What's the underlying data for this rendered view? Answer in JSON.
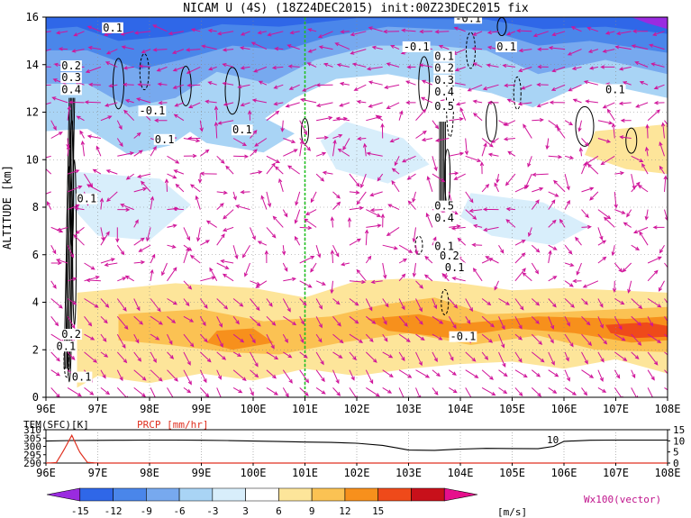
{
  "title": "NICAM U (4S) (18Z24DEC2015) init:00Z23DEC2015 fix",
  "chart_data": [
    {
      "type": "heatmap",
      "name": "zonal-wind-section",
      "ylabel": "ALTITUDE [km]",
      "x_ticks": [
        "96E",
        "97E",
        "98E",
        "99E",
        "100E",
        "101E",
        "102E",
        "103E",
        "104E",
        "105E",
        "106E",
        "107E",
        "108E"
      ],
      "x_range": [
        96,
        108
      ],
      "y_ticks": [
        "0",
        "2",
        "4",
        "6",
        "8",
        "10",
        "12",
        "14",
        "16"
      ],
      "y_range": [
        0,
        16
      ],
      "grid": true,
      "reference_line_lon": 101,
      "contour_labels": [
        {
          "text": "0.1",
          "lon": 97.1,
          "alt": 15.4
        },
        {
          "text": "0.2",
          "lon": 96.3,
          "alt": 13.8
        },
        {
          "text": "0.3",
          "lon": 96.3,
          "alt": 13.3
        },
        {
          "text": "0.4",
          "lon": 96.3,
          "alt": 12.8
        },
        {
          "text": "-0.1",
          "lon": 97.8,
          "alt": 11.9
        },
        {
          "text": "0.1",
          "lon": 98.1,
          "alt": 10.7
        },
        {
          "text": "0.1",
          "lon": 99.6,
          "alt": 11.1
        },
        {
          "text": "0.1",
          "lon": 96.6,
          "alt": 8.2
        },
        {
          "text": "-0.1",
          "lon": 102.9,
          "alt": 14.6
        },
        {
          "text": "0.1",
          "lon": 103.5,
          "alt": 14.2
        },
        {
          "text": "0.2",
          "lon": 103.5,
          "alt": 13.7
        },
        {
          "text": "0.3",
          "lon": 103.5,
          "alt": 13.2
        },
        {
          "text": "0.4",
          "lon": 103.5,
          "alt": 12.7
        },
        {
          "text": "0.5",
          "lon": 103.5,
          "alt": 12.1
        },
        {
          "text": "0.5",
          "lon": 103.5,
          "alt": 7.9
        },
        {
          "text": "0.4",
          "lon": 103.5,
          "alt": 7.4
        },
        {
          "text": "0.1",
          "lon": 103.5,
          "alt": 6.2
        },
        {
          "text": "0.2",
          "lon": 103.6,
          "alt": 5.8
        },
        {
          "text": "0.1",
          "lon": 103.7,
          "alt": 5.3
        },
        {
          "text": "-0.1",
          "lon": 103.8,
          "alt": 2.4
        },
        {
          "text": "-0.1",
          "lon": 103.9,
          "alt": 15.8
        },
        {
          "text": "0.1",
          "lon": 104.7,
          "alt": 14.6
        },
        {
          "text": "0.1",
          "lon": 106.8,
          "alt": 12.8
        },
        {
          "text": "0.1",
          "lon": 96.5,
          "alt": 0.7
        },
        {
          "text": "0.1",
          "lon": 96.2,
          "alt": 2.0
        },
        {
          "text": "0.2",
          "lon": 96.3,
          "alt": 2.5
        }
      ]
    },
    {
      "type": "line",
      "name": "surface-panel",
      "left_label": "TEM(SFC)[K]",
      "right_label": "PRCP [mm/hr]",
      "left_ticks": [
        "310",
        "305",
        "300",
        "295",
        "290"
      ],
      "left_range": [
        290,
        310
      ],
      "right_ticks": [
        "15",
        "10",
        "5",
        "0"
      ],
      "right_range": [
        0,
        15
      ],
      "x_ticks": [
        "96E",
        "97E",
        "98E",
        "99E",
        "100E",
        "101E",
        "102E",
        "103E",
        "104E",
        "105E",
        "106E",
        "107E",
        "108E"
      ],
      "annotation": "10",
      "series": [
        {
          "name": "TEM(SFC)[K]",
          "x": [
            96,
            96.5,
            97,
            97.5,
            98,
            98.5,
            99,
            99.5,
            100,
            100.5,
            101,
            101.5,
            102,
            102.5,
            102.8,
            103,
            103.5,
            104,
            104.5,
            105,
            105.5,
            105.8,
            106,
            106.5,
            107,
            107.5,
            108
          ],
          "values": [
            303.2,
            303.5,
            303.6,
            303.7,
            303.8,
            303.8,
            303.7,
            303.5,
            303.2,
            302.9,
            302.6,
            302.4,
            301.9,
            300.6,
            299.0,
            297.8,
            297.6,
            298.4,
            298.8,
            298.7,
            298.6,
            300.0,
            303.0,
            303.7,
            303.8,
            303.8,
            303.8
          ]
        },
        {
          "name": "PRCP [mm/hr]",
          "x": [
            96,
            96.2,
            96.35,
            96.5,
            96.65,
            96.8,
            97,
            108
          ],
          "values": [
            0,
            0.2,
            6.0,
            12.5,
            5.0,
            0.3,
            0,
            0
          ]
        }
      ]
    }
  ],
  "colorbar": {
    "ticks": [
      "-15",
      "-12",
      "-9",
      "-6",
      "-3",
      "3",
      "6",
      "9",
      "12",
      "15"
    ],
    "unit": "[m/s]",
    "colors": [
      "#9a2be0",
      "#2f67e8",
      "#4a86ea",
      "#77a9ef",
      "#a9d4f5",
      "#d8eefb",
      "#ffffff",
      "#fde59a",
      "#fbc253",
      "#f7901c",
      "#ef4a1a",
      "#c8101a",
      "#e60f8c"
    ]
  },
  "vector_note": "Wx100(vector)"
}
